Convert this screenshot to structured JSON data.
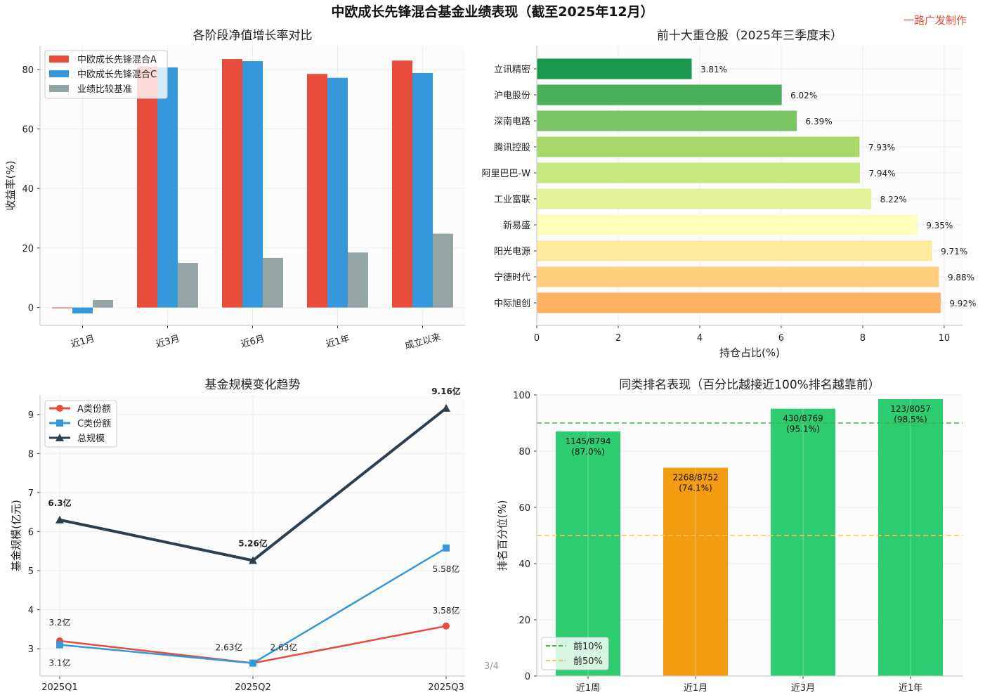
{
  "title": "中欧成长先锋混合基金业绩表现（截至2025年12月）",
  "watermark": "一路广发制作",
  "page_indicator": "3/4",
  "chart_data": [
    {
      "type": "bar",
      "title": "各阶段净值增长率对比",
      "xlabel": "",
      "ylabel": "收益率(%)",
      "ylim": [
        -6,
        88
      ],
      "yticks": [
        0,
        20,
        40,
        60,
        80
      ],
      "grid": true,
      "legend": "top-left",
      "categories": [
        "近1月",
        "近3月",
        "近6月",
        "近1年",
        "成立以来"
      ],
      "series": [
        {
          "name": "中欧成长先锋混合A",
          "color": "#e74c3c",
          "values": [
            -0.2,
            81.0,
            83.5,
            78.5,
            83.0
          ]
        },
        {
          "name": "中欧成长先锋混合C",
          "color": "#3498db",
          "values": [
            -2.0,
            80.7,
            82.8,
            77.2,
            78.8
          ]
        },
        {
          "name": "业绩比较基准",
          "color": "#95a5a6",
          "values": [
            2.5,
            15.0,
            16.7,
            18.5,
            24.8
          ]
        }
      ]
    },
    {
      "type": "bar",
      "orientation": "horizontal",
      "title": "前十大重仓股（2025年三季度末）",
      "xlabel": "持仓占比(%)",
      "xlim": [
        0,
        10.45
      ],
      "xticks": [
        0,
        2,
        4,
        6,
        8,
        10
      ],
      "grid": true,
      "categories": [
        "立讯精密",
        "沪电股份",
        "深南电路",
        "腾讯控股",
        "阿里巴巴-W",
        "工业富联",
        "新易盛",
        "阳光电源",
        "宁德时代",
        "中际旭创"
      ],
      "values": [
        3.81,
        6.02,
        6.39,
        7.93,
        7.94,
        8.22,
        9.35,
        9.71,
        9.88,
        9.92
      ],
      "labels": [
        "3.81%",
        "6.02%",
        "6.39%",
        "7.93%",
        "7.94%",
        "8.22%",
        "9.35%",
        "9.71%",
        "9.88%",
        "9.92%"
      ],
      "colors": [
        "#1a9850",
        "#4bb05c",
        "#7ac665",
        "#a6d96a",
        "#c6e77f",
        "#e3f399",
        "#feffbe",
        "#fee99d",
        "#fecf7e",
        "#fdb163"
      ]
    },
    {
      "type": "line",
      "title": "基金规模变化趋势",
      "xlabel": "",
      "ylabel": "基金规模(亿元)",
      "ylim": [
        2.3,
        9.5
      ],
      "yticks": [
        3,
        4,
        5,
        6,
        7,
        8,
        9
      ],
      "grid": true,
      "legend": "top-left",
      "categories": [
        "2025Q1",
        "2025Q2",
        "2025Q3"
      ],
      "series": [
        {
          "name": "A类份额",
          "color": "#e74c3c",
          "marker": "circle",
          "values": [
            3.2,
            2.63,
            3.58
          ],
          "labels": [
            "3.2亿",
            "2.63亿",
            "3.58亿"
          ]
        },
        {
          "name": "C类份额",
          "color": "#3498db",
          "marker": "square",
          "values": [
            3.1,
            2.63,
            5.58
          ],
          "labels": [
            "3.1亿",
            "2.63亿",
            "5.58亿"
          ]
        },
        {
          "name": "总规模",
          "color": "#2c3e50",
          "marker": "triangle",
          "values": [
            6.3,
            5.26,
            9.16
          ],
          "labels": [
            "6.3亿",
            "5.26亿",
            "9.16亿"
          ]
        }
      ]
    },
    {
      "type": "bar",
      "title": "同类排名表现（百分比越接近100%排名越靠前）",
      "xlabel": "",
      "ylabel": "排名百分位(%)",
      "ylim": [
        0,
        100
      ],
      "yticks": [
        0,
        20,
        40,
        60,
        80,
        100
      ],
      "grid": true,
      "legend": "bottom-left",
      "categories": [
        "近1周",
        "近1月",
        "近3月",
        "近1年"
      ],
      "values": [
        87.0,
        74.1,
        95.1,
        98.5
      ],
      "rank_labels": [
        "1145/8794",
        "2268/8752",
        "430/8769",
        "123/8057"
      ],
      "pct_labels": [
        "(87.0%)",
        "(74.1%)",
        "(95.1%)",
        "(98.5%)"
      ],
      "colors": [
        "#2ecc71",
        "#f39c12",
        "#2ecc71",
        "#2ecc71"
      ],
      "reference_lines": [
        {
          "name": "前10%",
          "value": 90,
          "color": "#4caf50"
        },
        {
          "name": "前50%",
          "value": 50,
          "color": "#ffc44d"
        }
      ]
    }
  ]
}
